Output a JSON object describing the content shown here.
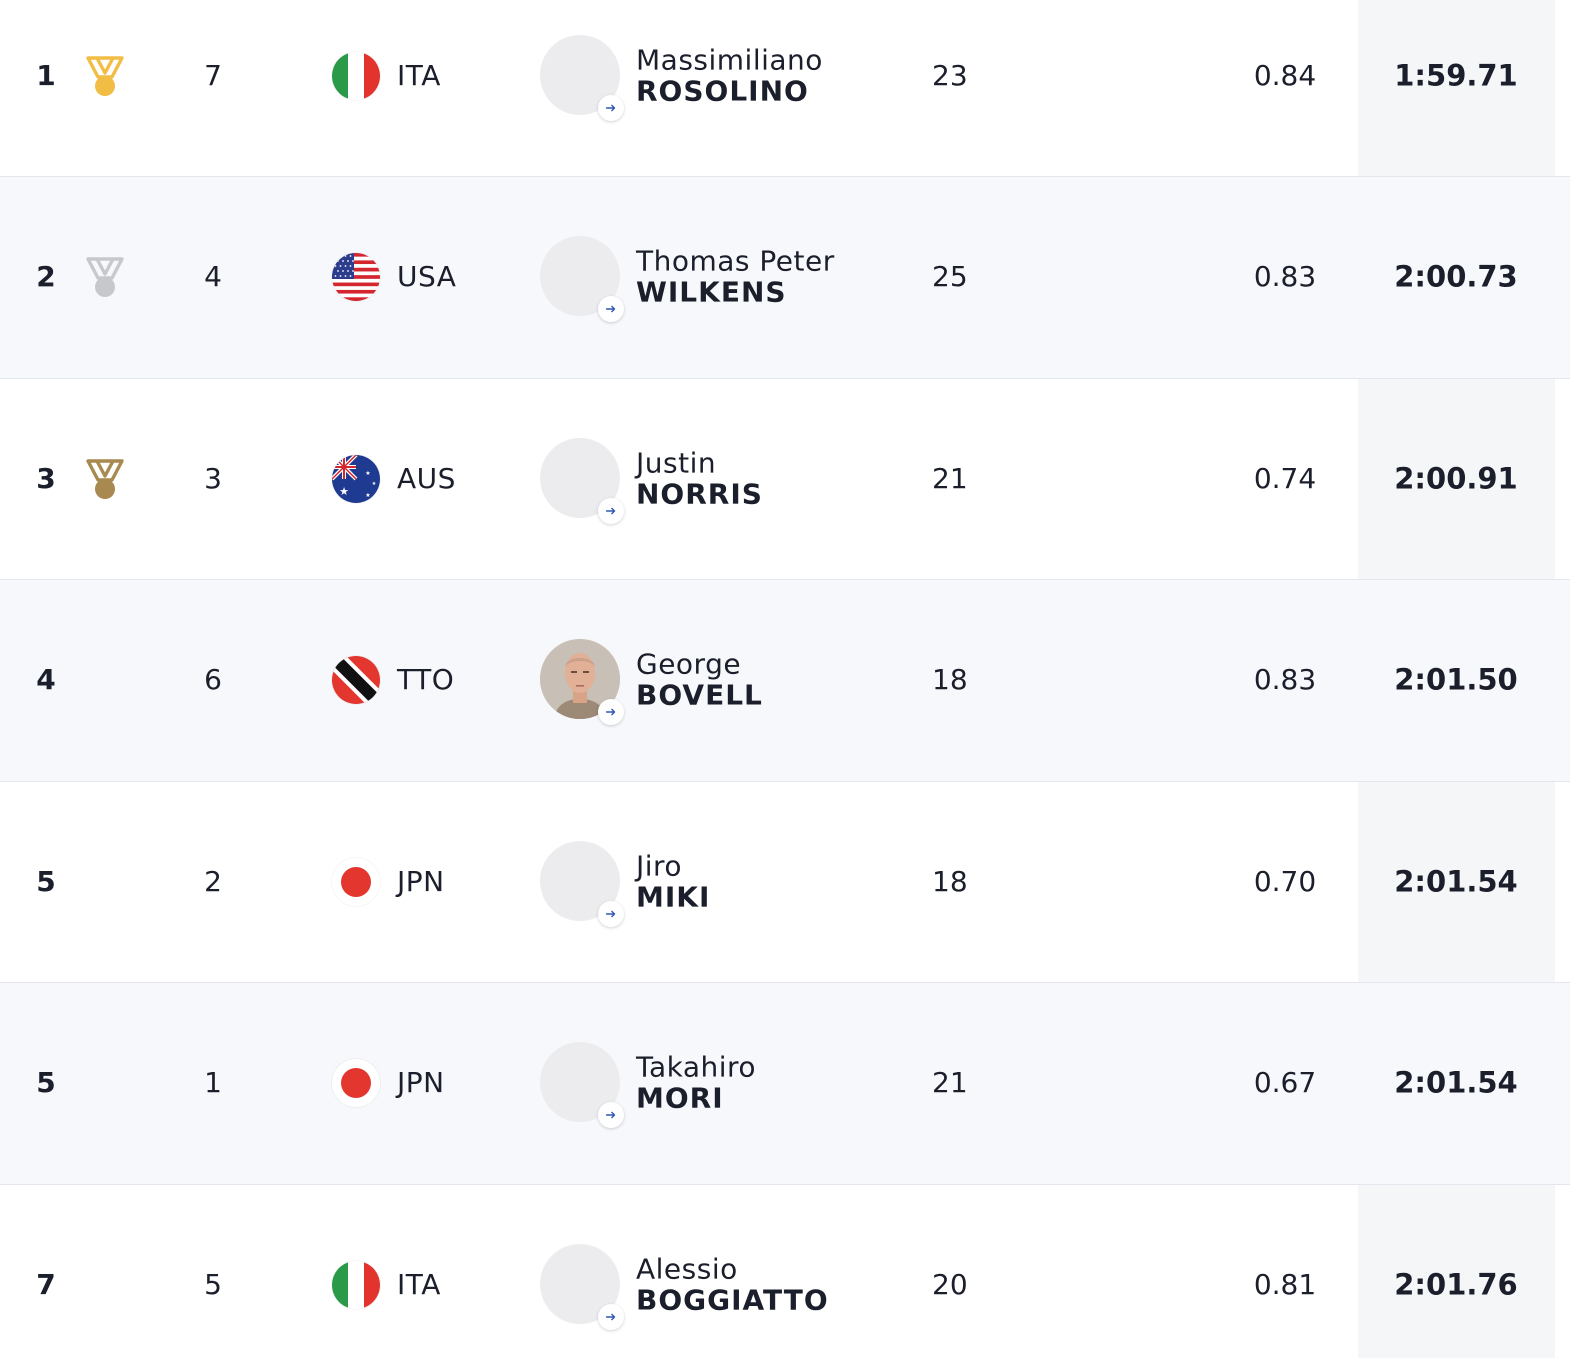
{
  "colors": {
    "gold": "#f2bd45",
    "silver": "#c6c8cc",
    "bronze": "#a8894f",
    "arrow": "#2f57b5"
  },
  "rows": [
    {
      "rank": "1",
      "medal": "gold",
      "lane": "7",
      "country": "ITA",
      "flag": "italy",
      "first": "Massimiliano",
      "last": "ROSOLINO",
      "photo": false,
      "age": "23",
      "reaction": "0.84",
      "time": "1:59.71"
    },
    {
      "rank": "2",
      "medal": "silver",
      "lane": "4",
      "country": "USA",
      "flag": "usa",
      "first": "Thomas Peter",
      "last": "WILKENS",
      "photo": false,
      "age": "25",
      "reaction": "0.83",
      "time": "2:00.73"
    },
    {
      "rank": "3",
      "medal": "bronze",
      "lane": "3",
      "country": "AUS",
      "flag": "australia",
      "first": "Justin",
      "last": "NORRIS",
      "photo": false,
      "age": "21",
      "reaction": "0.74",
      "time": "2:00.91"
    },
    {
      "rank": "4",
      "medal": "",
      "lane": "6",
      "country": "TTO",
      "flag": "trinidad-tobago",
      "first": "George",
      "last": "BOVELL",
      "photo": true,
      "age": "18",
      "reaction": "0.83",
      "time": "2:01.50"
    },
    {
      "rank": "5",
      "medal": "",
      "lane": "2",
      "country": "JPN",
      "flag": "japan",
      "first": "Jiro",
      "last": "MIKI",
      "photo": false,
      "age": "18",
      "reaction": "0.70",
      "time": "2:01.54"
    },
    {
      "rank": "5",
      "medal": "",
      "lane": "1",
      "country": "JPN",
      "flag": "japan",
      "first": "Takahiro",
      "last": "MORI",
      "photo": false,
      "age": "21",
      "reaction": "0.67",
      "time": "2:01.54"
    },
    {
      "rank": "7",
      "medal": "",
      "lane": "5",
      "country": "ITA",
      "flag": "italy",
      "first": "Alessio",
      "last": "BOGGIATTO",
      "photo": false,
      "age": "20",
      "reaction": "0.81",
      "time": "2:01.76"
    }
  ]
}
